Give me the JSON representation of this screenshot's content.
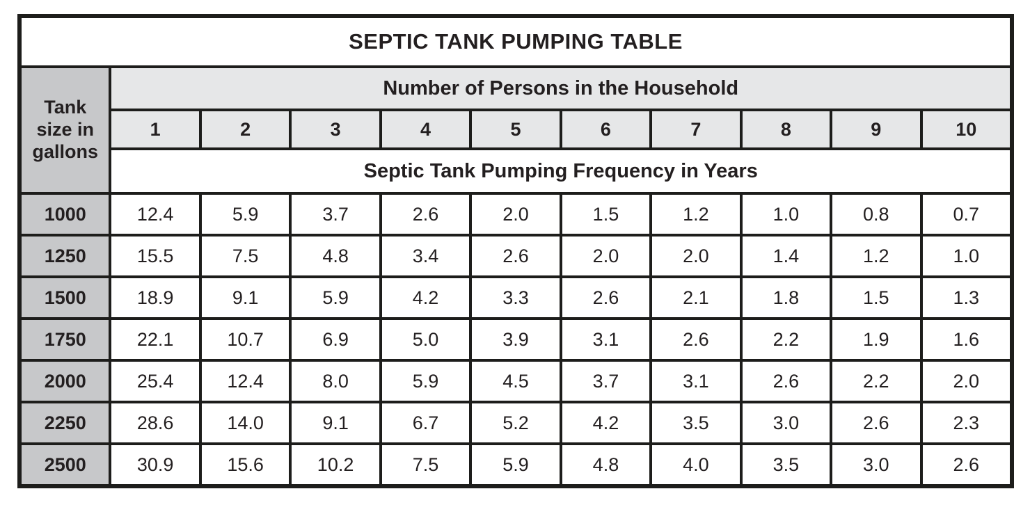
{
  "table": {
    "title": "SEPTIC TANK PUMPING TABLE",
    "corner_header": "Tank size in gallons",
    "col_group_header": "Number of Persons in the Household",
    "columns": [
      "1",
      "2",
      "3",
      "4",
      "5",
      "6",
      "7",
      "8",
      "9",
      "10"
    ],
    "sub_header": "Septic Tank Pumping Frequency in Years",
    "rows": [
      {
        "tank_size": "1000",
        "values": [
          "12.4",
          "5.9",
          "3.7",
          "2.6",
          "2.0",
          "1.5",
          "1.2",
          "1.0",
          "0.8",
          "0.7"
        ]
      },
      {
        "tank_size": "1250",
        "values": [
          "15.5",
          "7.5",
          "4.8",
          "3.4",
          "2.6",
          "2.0",
          "2.0",
          "1.4",
          "1.2",
          "1.0"
        ]
      },
      {
        "tank_size": "1500",
        "values": [
          "18.9",
          "9.1",
          "5.9",
          "4.2",
          "3.3",
          "2.6",
          "2.1",
          "1.8",
          "1.5",
          "1.3"
        ]
      },
      {
        "tank_size": "1750",
        "values": [
          "22.1",
          "10.7",
          "6.9",
          "5.0",
          "3.9",
          "3.1",
          "2.6",
          "2.2",
          "1.9",
          "1.6"
        ]
      },
      {
        "tank_size": "2000",
        "values": [
          "25.4",
          "12.4",
          "8.0",
          "5.9",
          "4.5",
          "3.7",
          "3.1",
          "2.6",
          "2.2",
          "2.0"
        ]
      },
      {
        "tank_size": "2250",
        "values": [
          "28.6",
          "14.0",
          "9.1",
          "6.7",
          "5.2",
          "4.2",
          "3.5",
          "3.0",
          "2.6",
          "2.3"
        ]
      },
      {
        "tank_size": "2500",
        "values": [
          "30.9",
          "15.6",
          "10.2",
          "7.5",
          "5.9",
          "4.8",
          "4.0",
          "3.5",
          "3.0",
          "2.6"
        ]
      }
    ]
  },
  "colors": {
    "border": "#1d1d1b",
    "row_header_gray": "#c7c8ca",
    "column_header_gray": "#e6e7e8",
    "text": "#231f20",
    "background": "#ffffff"
  },
  "chart_data": {
    "type": "table",
    "title": "SEPTIC TANK PUMPING TABLE",
    "row_axis_label": "Tank size in gallons",
    "column_axis_label": "Number of Persons in the Household",
    "value_label": "Septic Tank Pumping Frequency in Years",
    "columns": [
      1,
      2,
      3,
      4,
      5,
      6,
      7,
      8,
      9,
      10
    ],
    "rows": [
      1000,
      1250,
      1500,
      1750,
      2000,
      2250,
      2500
    ],
    "values": [
      [
        12.4,
        5.9,
        3.7,
        2.6,
        2.0,
        1.5,
        1.2,
        1.0,
        0.8,
        0.7
      ],
      [
        15.5,
        7.5,
        4.8,
        3.4,
        2.6,
        2.0,
        2.0,
        1.4,
        1.2,
        1.0
      ],
      [
        18.9,
        9.1,
        5.9,
        4.2,
        3.3,
        2.6,
        2.1,
        1.8,
        1.5,
        1.3
      ],
      [
        22.1,
        10.7,
        6.9,
        5.0,
        3.9,
        3.1,
        2.6,
        2.2,
        1.9,
        1.6
      ],
      [
        25.4,
        12.4,
        8.0,
        5.9,
        4.5,
        3.7,
        3.1,
        2.6,
        2.2,
        2.0
      ],
      [
        28.6,
        14.0,
        9.1,
        6.7,
        5.2,
        4.2,
        3.5,
        3.0,
        2.6,
        2.3
      ],
      [
        30.9,
        15.6,
        10.2,
        7.5,
        5.9,
        4.8,
        4.0,
        3.5,
        3.0,
        2.6
      ]
    ]
  }
}
